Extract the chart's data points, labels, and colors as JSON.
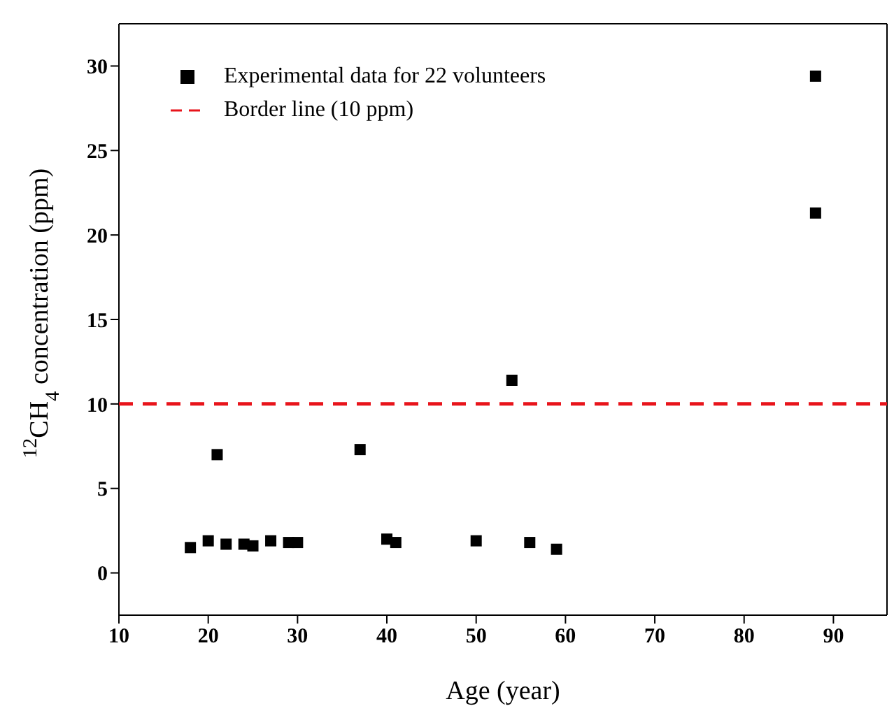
{
  "chart_data": {
    "type": "scatter",
    "xlabel": "Age (year)",
    "ylabel": "$^{12}$CH$_{4}$ concentration (ppm)",
    "xlim": [
      10,
      96
    ],
    "xticks": [
      10,
      20,
      30,
      40,
      50,
      60,
      70,
      80,
      90
    ],
    "ylim": [
      -2.5,
      32.5
    ],
    "yticks": [
      0,
      5,
      10,
      15,
      20,
      25,
      30
    ],
    "legend": "top left",
    "series": [
      {
        "name": "Experimental data for 22 volunteers",
        "color": "#000000",
        "marker": "square",
        "x": [
          18,
          20,
          21,
          22,
          24,
          25,
          27,
          29,
          30,
          37,
          40,
          41,
          50,
          54,
          56,
          59,
          88,
          88
        ],
        "values": [
          1.5,
          1.9,
          7.0,
          1.7,
          1.7,
          1.6,
          1.9,
          1.8,
          1.8,
          7.3,
          2.0,
          1.8,
          1.9,
          11.4,
          1.8,
          1.4,
          29.4,
          21.3
        ]
      },
      {
        "type": "line",
        "name": "Border line (10 ppm)",
        "color": "#e8141b",
        "line_style": "dashed",
        "marker": "none",
        "x": [
          10,
          96
        ],
        "values": [
          10,
          10
        ]
      }
    ]
  }
}
